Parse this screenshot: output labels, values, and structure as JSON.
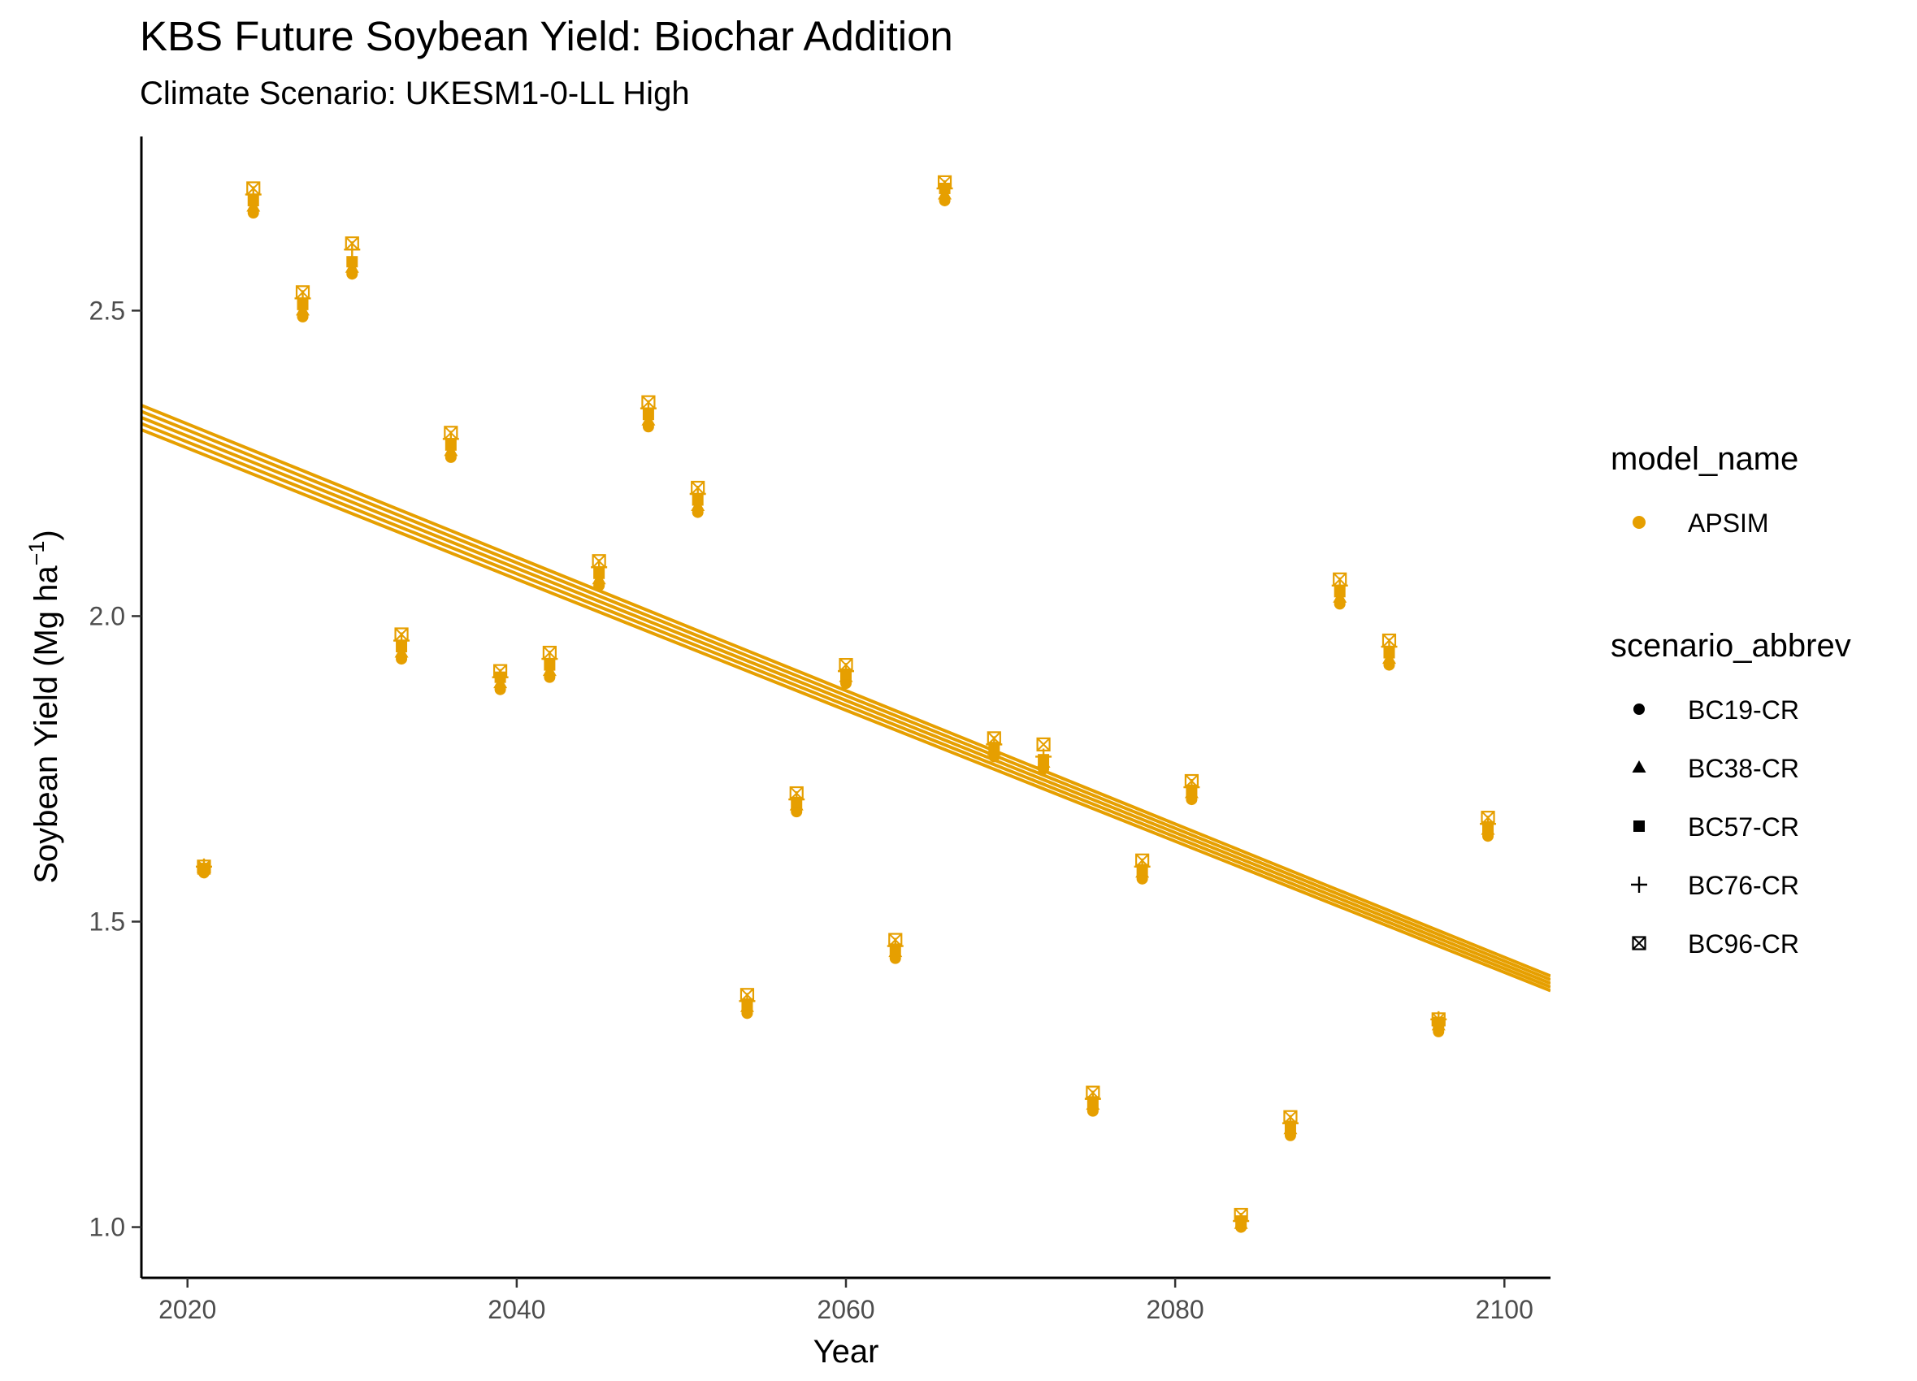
{
  "chart_data": {
    "type": "scatter",
    "title": "KBS Future Soybean Yield: Biochar Addition",
    "subtitle": "Climate Scenario: UKESM1-0-LL High",
    "xlabel": "Year",
    "ylabel_main": "Soybean Yield (Mg ha",
    "ylabel_sup": "−1",
    "ylabel_close": ")",
    "xlim": [
      2017.2,
      2102.8
    ],
    "ylim": [
      0.917,
      2.785
    ],
    "x_ticks": [
      2020,
      2040,
      2060,
      2080,
      2100
    ],
    "y_ticks": [
      1.0,
      1.5,
      2.0,
      2.5
    ],
    "y_tick_labels": [
      "1.0",
      "1.5",
      "2.0",
      "2.5"
    ],
    "grid": false,
    "legend_position": "right",
    "color": "#E69F00",
    "legend": {
      "model_title": "model_name",
      "model_entries": [
        "APSIM"
      ],
      "scenario_title": "scenario_abbrev",
      "scenario_entries": [
        {
          "label": "BC19-CR",
          "shape": "circle"
        },
        {
          "label": "BC38-CR",
          "shape": "triangle"
        },
        {
          "label": "BC57-CR",
          "shape": "square"
        },
        {
          "label": "BC76-CR",
          "shape": "plus"
        },
        {
          "label": "BC96-CR",
          "shape": "boxcross"
        }
      ]
    },
    "x": [
      2021,
      2024,
      2027,
      2030,
      2033,
      2036,
      2039,
      2042,
      2045,
      2048,
      2051,
      2054,
      2057,
      2060,
      2063,
      2066,
      2069,
      2072,
      2075,
      2078,
      2081,
      2084,
      2087,
      2090,
      2093,
      2096,
      2099
    ],
    "series": [
      {
        "name": "BC19-CR",
        "model": "APSIM",
        "shape": "circle",
        "values": [
          1.58,
          2.66,
          2.49,
          2.56,
          1.93,
          2.26,
          1.88,
          1.9,
          2.05,
          2.31,
          2.17,
          1.35,
          1.68,
          1.89,
          1.44,
          2.68,
          1.77,
          1.75,
          1.19,
          1.57,
          1.7,
          1.0,
          1.15,
          2.02,
          1.92,
          1.32,
          1.64
        ]
      },
      {
        "name": "BC38-CR",
        "model": "APSIM",
        "shape": "triangle",
        "values": [
          1.585,
          2.67,
          2.5,
          2.57,
          1.94,
          2.27,
          1.89,
          1.91,
          2.06,
          2.32,
          2.18,
          1.36,
          1.69,
          1.9,
          1.45,
          2.69,
          1.78,
          1.76,
          1.2,
          1.58,
          1.71,
          1.005,
          1.16,
          2.03,
          1.93,
          1.33,
          1.65
        ]
      },
      {
        "name": "BC57-CR",
        "model": "APSIM",
        "shape": "square",
        "values": [
          1.587,
          2.68,
          2.51,
          2.58,
          1.95,
          2.28,
          1.9,
          1.92,
          2.07,
          2.33,
          2.19,
          1.365,
          1.695,
          1.905,
          1.455,
          2.7,
          1.785,
          1.765,
          1.205,
          1.585,
          1.715,
          1.01,
          1.165,
          2.04,
          1.94,
          1.335,
          1.655
        ]
      },
      {
        "name": "BC76-CR",
        "model": "APSIM",
        "shape": "plus",
        "values": [
          1.59,
          2.69,
          2.52,
          2.6,
          1.96,
          2.29,
          1.9,
          1.93,
          2.08,
          2.34,
          2.2,
          1.37,
          1.7,
          1.91,
          1.46,
          2.7,
          1.79,
          1.77,
          1.21,
          1.59,
          1.72,
          1.01,
          1.17,
          2.05,
          1.95,
          1.34,
          1.66
        ]
      },
      {
        "name": "BC96-CR",
        "model": "APSIM",
        "shape": "boxcross",
        "values": [
          1.59,
          2.7,
          2.53,
          2.61,
          1.97,
          2.3,
          1.91,
          1.94,
          2.09,
          2.35,
          2.21,
          1.38,
          1.71,
          1.92,
          1.47,
          2.71,
          1.8,
          1.79,
          1.22,
          1.6,
          1.73,
          1.02,
          1.18,
          2.06,
          1.96,
          1.34,
          1.67
        ]
      }
    ],
    "trend_lines": [
      {
        "name": "BC19-CR",
        "y_at_xmin": 2.305,
        "y_at_xmax": 1.387
      },
      {
        "name": "BC38-CR",
        "y_at_xmin": 2.315,
        "y_at_xmax": 1.393
      },
      {
        "name": "BC57-CR",
        "y_at_xmin": 2.325,
        "y_at_xmax": 1.399
      },
      {
        "name": "BC76-CR",
        "y_at_xmin": 2.335,
        "y_at_xmax": 1.405
      },
      {
        "name": "BC96-CR",
        "y_at_xmin": 2.345,
        "y_at_xmax": 1.411
      }
    ]
  }
}
